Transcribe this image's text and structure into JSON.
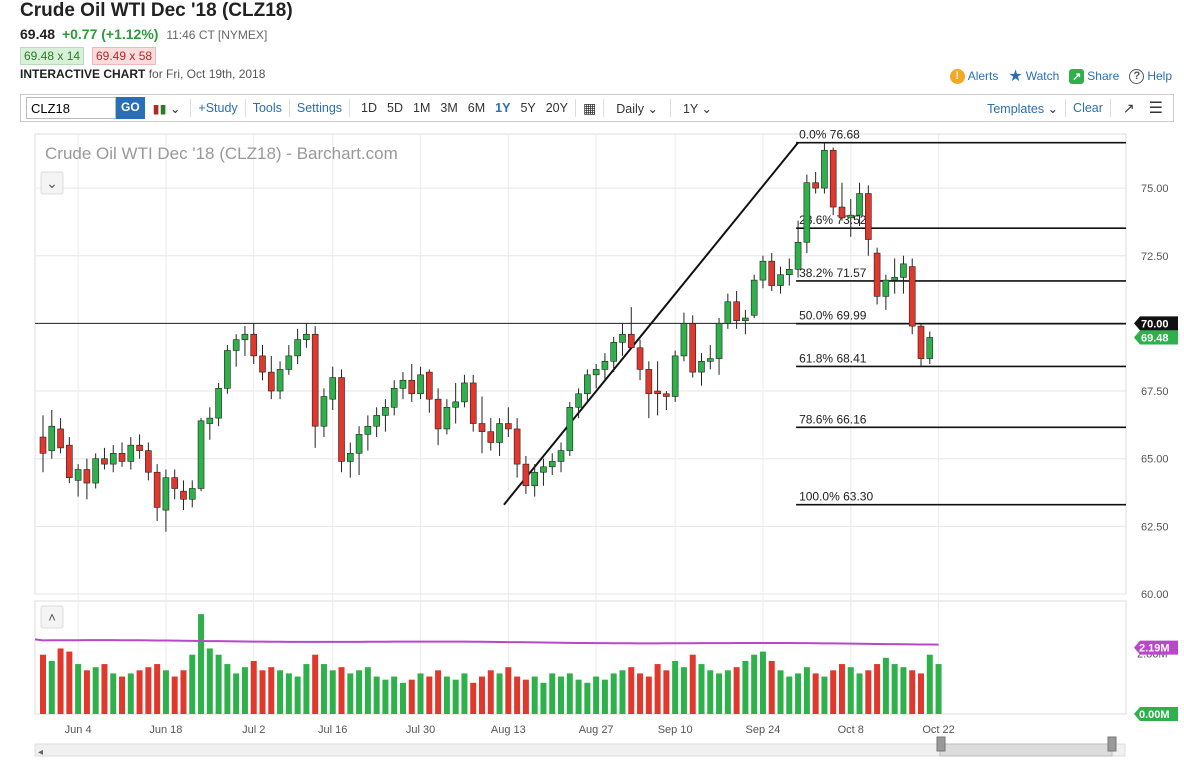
{
  "header": {
    "title": "Crude Oil WTI Dec '18 (CLZ18)",
    "last": "69.48",
    "change": "+0.77 (+1.12%)",
    "time": "11:46 CT [NYMEX]",
    "bid": "69.48 x 14",
    "ask": "69.49 x 58",
    "interactive_label": "INTERACTIVE CHART",
    "interactive_date": "for Fri, Oct 19th, 2018"
  },
  "links": {
    "alerts": "Alerts",
    "watch": "Watch",
    "share": "Share",
    "help": "Help"
  },
  "toolbar": {
    "symbol": "CLZ18",
    "go": "GO",
    "study": "+Study",
    "tools": "Tools",
    "settings": "Settings",
    "periods": [
      "1D",
      "5D",
      "1M",
      "3M",
      "6M",
      "1Y",
      "5Y",
      "20Y"
    ],
    "active_period": "1Y",
    "interval": "Daily",
    "range": "1Y",
    "templates": "Templates",
    "clear": "Clear"
  },
  "colors": {
    "up": "#2eb14a",
    "down": "#e0382c",
    "link": "#2a6fb5",
    "ma": "#b848c8"
  },
  "chart_data": {
    "type": "candlestick",
    "title": "Crude Oil WTI Dec '18 (CLZ18) - Barchart.com",
    "ylim": [
      60,
      77
    ],
    "y_ticks": [
      "75.00",
      "72.50",
      "70.00",
      "67.50",
      "65.00",
      "62.50",
      "60.00"
    ],
    "x_ticks": [
      {
        "label": "Jun 4",
        "i": 4
      },
      {
        "label": "Jun 18",
        "i": 14
      },
      {
        "label": "Jul 2",
        "i": 24
      },
      {
        "label": "Jul 16",
        "i": 33
      },
      {
        "label": "Jul 30",
        "i": 43
      },
      {
        "label": "Aug 13",
        "i": 53
      },
      {
        "label": "Aug 27",
        "i": 63
      },
      {
        "label": "Sep 10",
        "i": 72
      },
      {
        "label": "Sep 24",
        "i": 82
      },
      {
        "label": "Oct 8",
        "i": 92
      },
      {
        "label": "Oct 22",
        "i": 102
      }
    ],
    "candles": [
      [
        65.8,
        66.6,
        64.5,
        65.2
      ],
      [
        65.3,
        66.8,
        65.0,
        66.2
      ],
      [
        66.1,
        66.5,
        65.2,
        65.4
      ],
      [
        65.5,
        65.8,
        64.1,
        64.3
      ],
      [
        64.2,
        64.8,
        63.6,
        64.6
      ],
      [
        64.6,
        65.0,
        63.5,
        64.1
      ],
      [
        64.1,
        65.2,
        63.9,
        65.0
      ],
      [
        65.0,
        65.4,
        64.6,
        64.8
      ],
      [
        64.8,
        65.5,
        64.5,
        65.2
      ],
      [
        65.2,
        65.6,
        64.7,
        64.9
      ],
      [
        64.9,
        65.8,
        64.6,
        65.5
      ],
      [
        65.5,
        65.9,
        65.0,
        65.3
      ],
      [
        65.3,
        65.6,
        64.2,
        64.5
      ],
      [
        64.5,
        64.8,
        62.7,
        63.2
      ],
      [
        63.1,
        64.6,
        62.3,
        64.3
      ],
      [
        64.3,
        64.6,
        63.5,
        63.9
      ],
      [
        63.8,
        64.2,
        63.1,
        63.5
      ],
      [
        63.5,
        64.2,
        63.2,
        63.9
      ],
      [
        63.9,
        66.5,
        63.8,
        66.4
      ],
      [
        66.3,
        66.9,
        65.7,
        66.5
      ],
      [
        66.5,
        67.8,
        66.2,
        67.6
      ],
      [
        67.6,
        69.2,
        67.4,
        69.0
      ],
      [
        69.0,
        69.6,
        68.4,
        69.4
      ],
      [
        69.4,
        69.9,
        68.8,
        69.6
      ],
      [
        69.6,
        70.0,
        68.5,
        68.8
      ],
      [
        68.8,
        69.2,
        67.9,
        68.2
      ],
      [
        68.2,
        68.8,
        67.2,
        67.5
      ],
      [
        67.5,
        68.6,
        67.2,
        68.3
      ],
      [
        68.3,
        69.2,
        68.1,
        68.8
      ],
      [
        68.8,
        69.8,
        68.5,
        69.4
      ],
      [
        69.4,
        70.0,
        69.1,
        69.6
      ],
      [
        69.6,
        69.9,
        65.4,
        66.2
      ],
      [
        66.2,
        67.6,
        65.8,
        67.3
      ],
      [
        67.2,
        68.4,
        66.8,
        68.0
      ],
      [
        68.0,
        68.3,
        64.5,
        64.9
      ],
      [
        64.9,
        65.6,
        64.3,
        65.2
      ],
      [
        65.2,
        66.2,
        64.4,
        65.9
      ],
      [
        65.9,
        66.6,
        65.3,
        66.2
      ],
      [
        66.2,
        66.9,
        65.8,
        66.6
      ],
      [
        66.6,
        67.2,
        66.0,
        66.9
      ],
      [
        66.9,
        67.9,
        66.6,
        67.6
      ],
      [
        67.6,
        68.2,
        67.2,
        67.9
      ],
      [
        67.9,
        68.5,
        67.1,
        67.4
      ],
      [
        67.4,
        68.4,
        67.2,
        68.1
      ],
      [
        68.2,
        68.3,
        66.7,
        67.2
      ],
      [
        67.2,
        67.6,
        65.5,
        66.1
      ],
      [
        66.1,
        67.2,
        65.9,
        66.9
      ],
      [
        66.9,
        67.8,
        66.3,
        67.1
      ],
      [
        67.1,
        68.1,
        66.9,
        67.8
      ],
      [
        67.8,
        68.1,
        66.0,
        66.3
      ],
      [
        66.3,
        67.3,
        65.2,
        66.0
      ],
      [
        66.0,
        66.5,
        65.3,
        65.6
      ],
      [
        65.6,
        66.5,
        65.1,
        66.3
      ],
      [
        66.3,
        66.9,
        65.8,
        66.1
      ],
      [
        66.1,
        66.5,
        64.3,
        64.8
      ],
      [
        64.8,
        65.1,
        63.7,
        64.0
      ],
      [
        64.0,
        64.8,
        63.6,
        64.5
      ],
      [
        64.5,
        65.0,
        64.0,
        64.7
      ],
      [
        64.7,
        65.2,
        64.4,
        64.9
      ],
      [
        64.9,
        65.6,
        64.5,
        65.3
      ],
      [
        65.3,
        67.1,
        65.1,
        66.9
      ],
      [
        66.9,
        67.6,
        66.5,
        67.4
      ],
      [
        67.4,
        68.3,
        67.1,
        68.1
      ],
      [
        68.1,
        68.5,
        67.6,
        68.3
      ],
      [
        68.3,
        68.9,
        67.9,
        68.6
      ],
      [
        68.6,
        69.5,
        68.2,
        69.3
      ],
      [
        69.3,
        70.0,
        68.8,
        69.6
      ],
      [
        69.6,
        70.6,
        69.1,
        69.1
      ],
      [
        69.1,
        69.4,
        67.9,
        68.3
      ],
      [
        68.3,
        68.6,
        66.5,
        67.4
      ],
      [
        67.5,
        68.6,
        66.6,
        67.4
      ],
      [
        67.4,
        67.5,
        66.8,
        67.3
      ],
      [
        67.3,
        69.0,
        67.1,
        68.8
      ],
      [
        68.8,
        70.4,
        68.6,
        70.0
      ],
      [
        70.0,
        70.3,
        68.0,
        68.2
      ],
      [
        68.2,
        68.9,
        67.7,
        68.6
      ],
      [
        68.6,
        69.2,
        68.3,
        68.7
      ],
      [
        68.7,
        70.2,
        68.1,
        70.0
      ],
      [
        70.0,
        71.1,
        69.8,
        70.8
      ],
      [
        70.8,
        71.2,
        69.8,
        70.1
      ],
      [
        70.1,
        70.5,
        69.6,
        70.2
      ],
      [
        70.3,
        71.8,
        70.2,
        71.6
      ],
      [
        71.6,
        72.5,
        71.3,
        72.3
      ],
      [
        72.3,
        72.6,
        71.2,
        71.4
      ],
      [
        71.4,
        72.1,
        71.1,
        71.8
      ],
      [
        71.8,
        72.4,
        71.4,
        72.0
      ],
      [
        72.0,
        73.8,
        71.7,
        73.0
      ],
      [
        73.0,
        75.5,
        72.6,
        75.2
      ],
      [
        75.2,
        75.6,
        74.8,
        75.0
      ],
      [
        75.0,
        76.7,
        74.8,
        76.4
      ],
      [
        76.4,
        76.5,
        74.0,
        74.3
      ],
      [
        74.3,
        75.2,
        73.8,
        73.9
      ],
      [
        73.9,
        74.6,
        73.2,
        74.0
      ],
      [
        74.0,
        75.2,
        73.6,
        74.8
      ],
      [
        74.8,
        75.1,
        72.5,
        73.1
      ],
      [
        72.6,
        72.8,
        70.7,
        71.0
      ],
      [
        71.0,
        71.8,
        70.5,
        71.6
      ],
      [
        71.6,
        72.4,
        71.1,
        71.7
      ],
      [
        71.7,
        72.5,
        71.1,
        72.2
      ],
      [
        72.1,
        72.4,
        69.6,
        69.9
      ],
      [
        69.9,
        70.0,
        68.4,
        68.7
      ],
      [
        68.7,
        69.7,
        68.5,
        69.48
      ]
    ],
    "fib_levels": [
      {
        "label": "0.0%",
        "value": 76.68,
        "text": "76.68"
      },
      {
        "label": "23.6%",
        "value": 73.52,
        "text": "73.52"
      },
      {
        "label": "38.2%",
        "value": 71.57,
        "text": "71.57"
      },
      {
        "label": "50.0%",
        "value": 69.99,
        "text": "69.99"
      },
      {
        "label": "61.8%",
        "value": 68.41,
        "text": "68.41"
      },
      {
        "label": "78.6%",
        "value": 66.16,
        "text": "66.16"
      },
      {
        "label": "100.0%",
        "value": 63.3,
        "text": "63.30"
      }
    ],
    "fib_start_index": 86,
    "trendline": {
      "from": [
        52.5,
        63.3
      ],
      "to": [
        86,
        76.68
      ]
    },
    "horizontal_line": 70.0,
    "price_badges": [
      {
        "value": 70.0,
        "text": "70.00"
      },
      {
        "value": 69.48,
        "text": "69.48"
      }
    ],
    "volume": {
      "ma_label": "2.19M",
      "zero_label": "0.00M",
      "cut_label": "2.86M",
      "ma_level": 2.19,
      "max": 3.3,
      "values": [
        1.9,
        1.7,
        2.1,
        2.0,
        1.6,
        1.4,
        1.5,
        1.6,
        1.3,
        1.2,
        1.3,
        1.4,
        1.5,
        1.6,
        1.4,
        1.2,
        1.4,
        1.9,
        3.2,
        2.1,
        1.9,
        1.6,
        1.3,
        1.5,
        1.7,
        1.4,
        1.5,
        1.4,
        1.3,
        1.2,
        1.6,
        1.9,
        1.6,
        1.4,
        1.5,
        1.3,
        1.4,
        1.5,
        1.2,
        1.1,
        1.2,
        1.0,
        1.1,
        1.3,
        1.2,
        1.4,
        1.2,
        1.1,
        1.3,
        1.0,
        1.2,
        1.4,
        1.3,
        1.5,
        1.2,
        1.1,
        1.2,
        1.0,
        1.3,
        1.2,
        1.3,
        1.1,
        1.0,
        1.2,
        1.1,
        1.3,
        1.4,
        1.5,
        1.3,
        1.2,
        1.6,
        1.4,
        1.7,
        1.5,
        1.9,
        1.6,
        1.4,
        1.3,
        1.4,
        1.5,
        1.7,
        1.9,
        2.0,
        1.7,
        1.4,
        1.2,
        1.3,
        1.5,
        1.3,
        1.2,
        1.4,
        1.6,
        1.5,
        1.3,
        1.4,
        1.6,
        1.8,
        1.6,
        1.5,
        1.4,
        1.3,
        1.9,
        1.6
      ]
    }
  }
}
